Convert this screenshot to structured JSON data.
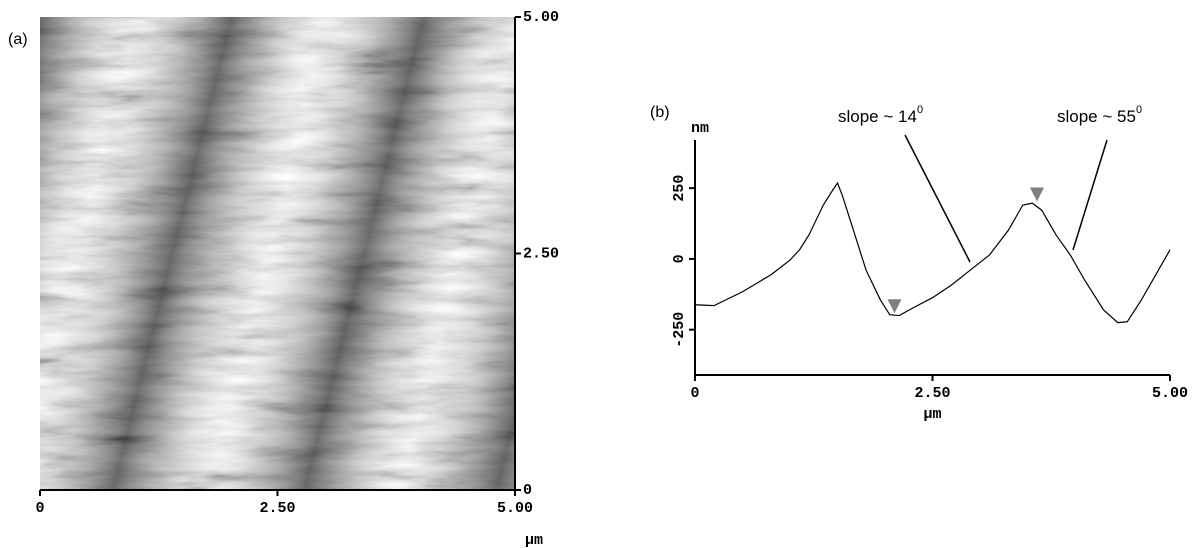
{
  "chart_data": [
    {
      "type": "image",
      "label": "(a)",
      "xlim": [
        0,
        5
      ],
      "ylim": [
        0,
        5
      ],
      "xticks": [
        0,
        {
          "value": 2.5,
          "label": "2.50"
        },
        {
          "value": 5,
          "label": "5.00"
        }
      ],
      "yticks": [
        0,
        {
          "value": 2.5,
          "label": "2.50"
        },
        {
          "value": 5,
          "label": "5.00"
        }
      ],
      "xlabel": "µm"
    },
    {
      "type": "line",
      "label": "(b)",
      "x": [
        0,
        0.2,
        0.5,
        0.8,
        1.0,
        1.1,
        1.2,
        1.35,
        1.45,
        1.5,
        1.55,
        1.65,
        1.8,
        1.95,
        2.05,
        2.15,
        2.3,
        2.5,
        2.7,
        2.9,
        3.1,
        3.3,
        3.45,
        3.55,
        3.65,
        3.8,
        3.95,
        4.1,
        4.3,
        4.45,
        4.55,
        4.7,
        4.85,
        5.0
      ],
      "values": [
        -162,
        -165,
        -116,
        -56,
        -4,
        32,
        85,
        190,
        243,
        268,
        225,
        120,
        -39,
        -144,
        -197,
        -200,
        -172,
        -137,
        -92,
        -39,
        14,
        102,
        190,
        197,
        172,
        85,
        14,
        -74,
        -180,
        -225,
        -222,
        -144,
        -56,
        32
      ],
      "color": "#000000",
      "xlim": [
        0,
        5
      ],
      "ylim": [
        -410,
        420
      ],
      "xticks": [
        0,
        {
          "value": 2.5,
          "label": "2.50"
        },
        {
          "value": 5,
          "label": "5.00"
        }
      ],
      "yticks": [
        -250,
        0,
        250
      ],
      "xlabel": "µm",
      "ylabel": "nm",
      "markers": {
        "x": [
          2.1,
          3.6
        ],
        "y": [
          -185,
          210
        ],
        "color": "#808080"
      },
      "annotations": [
        {
          "text": "slope ~ 14",
          "sup": "0"
        },
        {
          "text": "slope ~ 55",
          "sup": "0"
        }
      ]
    }
  ]
}
